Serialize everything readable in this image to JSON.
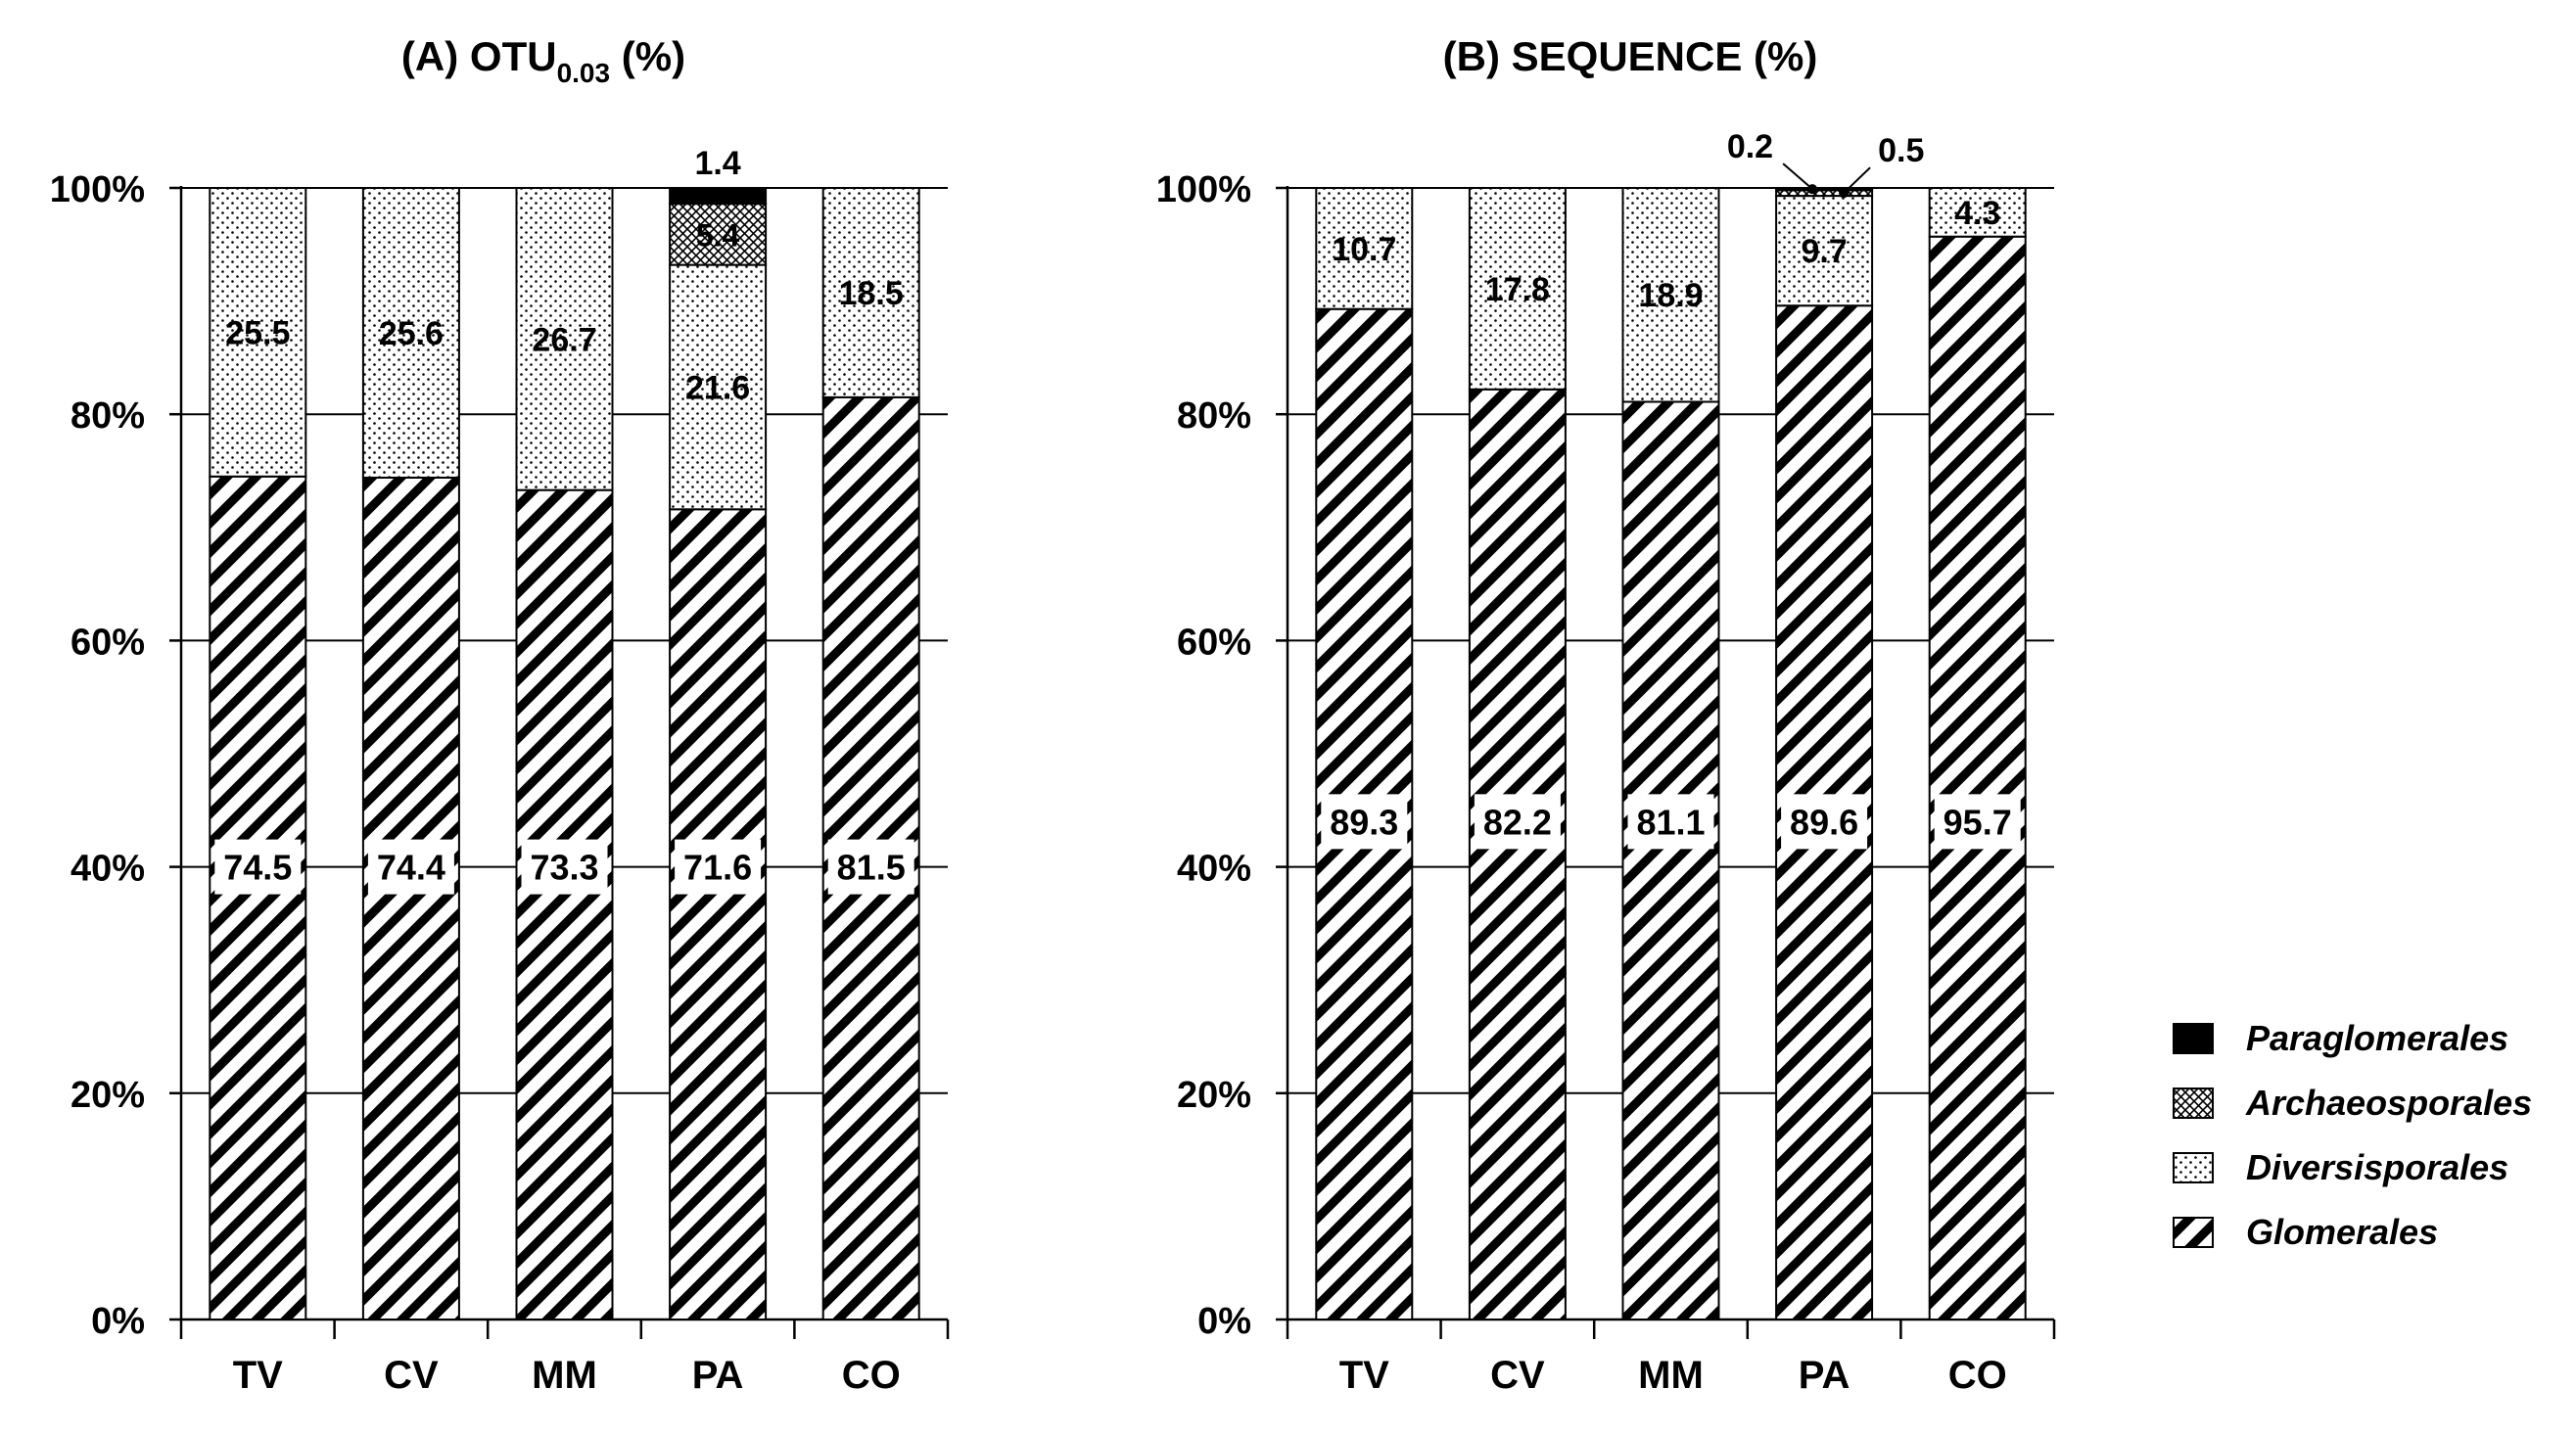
{
  "chart_data": [
    {
      "type": "bar",
      "stacked": true,
      "title": "(A) OTU",
      "title_subscript": "0.03",
      "title_suffix": " (%)",
      "categories": [
        "TV",
        "CV",
        "MM",
        "PA",
        "CO"
      ],
      "ylim": [
        0,
        100
      ],
      "yticks": [
        "0%",
        "20%",
        "40%",
        "60%",
        "80%",
        "100%"
      ],
      "grid": true,
      "series": [
        {
          "name": "Glomerales",
          "values": [
            74.5,
            74.4,
            73.3,
            71.6,
            81.5
          ]
        },
        {
          "name": "Diversisporales",
          "values": [
            25.5,
            25.6,
            26.7,
            21.6,
            18.5
          ]
        },
        {
          "name": "Archaeosporales",
          "values": [
            0,
            0,
            0,
            5.4,
            0
          ]
        },
        {
          "name": "Paraglomerales",
          "values": [
            0,
            0,
            0,
            1.4,
            0
          ]
        }
      ],
      "labels": {
        "Glomerales": [
          "74.5",
          "74.4",
          "73.3",
          "71.6",
          "81.5"
        ],
        "Diversisporales": [
          "25.5",
          "25.6",
          "26.7",
          "21.6",
          "18.5"
        ],
        "Archaeosporales": [
          "",
          "",
          "",
          "5.4",
          ""
        ],
        "Paraglomerales": [
          "",
          "",
          "",
          "1.4",
          ""
        ]
      }
    },
    {
      "type": "bar",
      "stacked": true,
      "title": "(B) SEQUENCE (%)",
      "categories": [
        "TV",
        "CV",
        "MM",
        "PA",
        "CO"
      ],
      "ylim": [
        0,
        100
      ],
      "yticks": [
        "0%",
        "20%",
        "40%",
        "60%",
        "80%",
        "100%"
      ],
      "grid": true,
      "series": [
        {
          "name": "Glomerales",
          "values": [
            89.3,
            82.2,
            81.1,
            89.6,
            95.7
          ]
        },
        {
          "name": "Diversisporales",
          "values": [
            10.7,
            17.8,
            18.9,
            9.7,
            4.3
          ]
        },
        {
          "name": "Archaeosporales",
          "values": [
            0,
            0,
            0,
            0.5,
            0
          ]
        },
        {
          "name": "Paraglomerales",
          "values": [
            0,
            0,
            0,
            0.2,
            0
          ]
        }
      ],
      "labels": {
        "Glomerales": [
          "89.3",
          "82.2",
          "81.1",
          "89.6",
          "95.7"
        ],
        "Diversisporales": [
          "10.7",
          "17.8",
          "18.9",
          "9.7",
          "4.3"
        ],
        "Archaeosporales": [
          "",
          "",
          "",
          "0.5",
          ""
        ],
        "Paraglomerales": [
          "",
          "",
          "",
          "0.2",
          ""
        ]
      }
    }
  ],
  "legend": {
    "placement": "bottom-right",
    "items": [
      {
        "name": "Paraglomerales",
        "pattern": "solid-black"
      },
      {
        "name": "Archaeosporales",
        "pattern": "crosshatch"
      },
      {
        "name": "Diversisporales",
        "pattern": "dots"
      },
      {
        "name": "Glomerales",
        "pattern": "diagonal-stripes"
      }
    ]
  },
  "colors": {
    "ink": "#000000",
    "background": "#ffffff"
  }
}
